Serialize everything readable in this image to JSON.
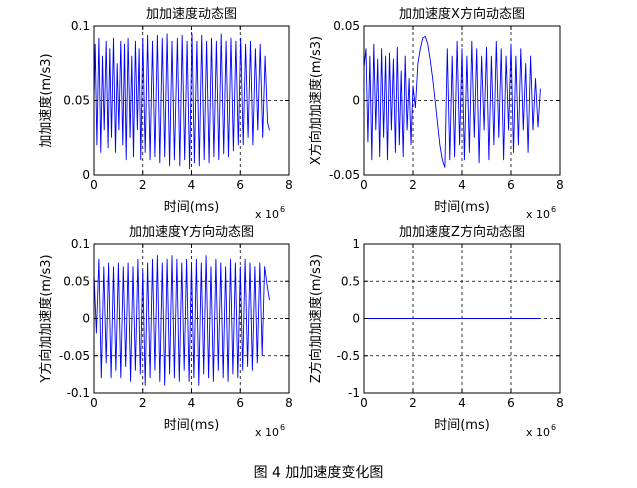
{
  "figure_caption": "图 4  加加速度变化图",
  "colors": {
    "series": "#0000ff",
    "axes": "#000000",
    "grid": "#000000",
    "background": "#ffffff"
  },
  "chart_data": [
    {
      "type": "line",
      "title": "加加速度动态图",
      "xlabel": "时间(ms)",
      "ylabel": "加加速度(m/s3)",
      "x_exponent_label": "x 10",
      "x_exponent": "6",
      "xlim": [
        0,
        8
      ],
      "ylim": [
        0,
        0.1
      ],
      "xticks": [
        "0",
        "2",
        "4",
        "6",
        "8"
      ],
      "yticks": [
        "0",
        "0.05",
        "0.1"
      ],
      "ytick_values": [
        0,
        0.05,
        0.1
      ],
      "grid": true,
      "series": [
        {
          "values_note": "x in units of 1e6 ms",
          "x": [
            0.0,
            0.05,
            0.12,
            0.2,
            0.28,
            0.35,
            0.42,
            0.5,
            0.58,
            0.65,
            0.72,
            0.8,
            0.88,
            0.95,
            1.02,
            1.1,
            1.18,
            1.25,
            1.32,
            1.4,
            1.48,
            1.55,
            1.62,
            1.7,
            1.78,
            1.85,
            1.92,
            2.0,
            2.1,
            2.2,
            2.3,
            2.4,
            2.5,
            2.6,
            2.7,
            2.8,
            2.9,
            3.0,
            3.1,
            3.2,
            3.3,
            3.42,
            3.52,
            3.62,
            3.72,
            3.82,
            3.92,
            4.02,
            4.12,
            4.22,
            4.32,
            4.42,
            4.52,
            4.62,
            4.72,
            4.82,
            4.92,
            5.02,
            5.12,
            5.22,
            5.32,
            5.42,
            5.52,
            5.62,
            5.72,
            5.82,
            5.92,
            6.02,
            6.12,
            6.22,
            6.32,
            6.42,
            6.52,
            6.62,
            6.72,
            6.82,
            6.92,
            7.02,
            7.12,
            7.2
          ],
          "y": [
            0.05,
            0.088,
            0.02,
            0.092,
            0.015,
            0.08,
            0.03,
            0.09,
            0.018,
            0.085,
            0.025,
            0.092,
            0.015,
            0.075,
            0.03,
            0.09,
            0.02,
            0.088,
            0.01,
            0.092,
            0.025,
            0.08,
            0.012,
            0.09,
            0.03,
            0.085,
            0.01,
            0.092,
            0.015,
            0.094,
            0.01,
            0.09,
            0.012,
            0.094,
            0.008,
            0.092,
            0.012,
            0.095,
            0.006,
            0.09,
            0.01,
            0.092,
            0.006,
            0.094,
            0.01,
            0.09,
            0.004,
            0.095,
            0.008,
            0.09,
            0.006,
            0.094,
            0.01,
            0.09,
            0.008,
            0.092,
            0.012,
            0.09,
            0.01,
            0.095,
            0.014,
            0.09,
            0.012,
            0.092,
            0.016,
            0.09,
            0.02,
            0.092,
            0.02,
            0.088,
            0.025,
            0.09,
            0.02,
            0.085,
            0.03,
            0.088,
            0.025,
            0.08,
            0.035,
            0.03
          ]
        }
      ]
    },
    {
      "type": "line",
      "title": "加加速度X方向动态图",
      "xlabel": "时间(ms)",
      "ylabel": "X方向加加速度(m/s3)",
      "x_exponent_label": "x 10",
      "x_exponent": "6",
      "xlim": [
        0,
        8
      ],
      "ylim": [
        -0.05,
        0.05
      ],
      "xticks": [
        "0",
        "2",
        "4",
        "6",
        "8"
      ],
      "yticks": [
        "-0.05",
        "0",
        "0.05"
      ],
      "ytick_values": [
        -0.05,
        0,
        0.05
      ],
      "grid": true,
      "series": [
        {
          "x": [
            0.0,
            0.08,
            0.16,
            0.24,
            0.32,
            0.4,
            0.48,
            0.56,
            0.64,
            0.72,
            0.8,
            0.88,
            0.96,
            1.04,
            1.12,
            1.2,
            1.28,
            1.36,
            1.44,
            1.52,
            1.6,
            1.68,
            1.76,
            1.84,
            1.92,
            2.0,
            2.1,
            2.2,
            2.3,
            2.4,
            2.5,
            2.6,
            2.7,
            2.8,
            2.9,
            3.0,
            3.1,
            3.2,
            3.3,
            3.4,
            3.5,
            3.6,
            3.7,
            3.8,
            3.9,
            4.0,
            4.1,
            4.2,
            4.3,
            4.4,
            4.5,
            4.6,
            4.7,
            4.8,
            4.9,
            5.0,
            5.1,
            5.2,
            5.3,
            5.4,
            5.5,
            5.6,
            5.7,
            5.8,
            5.9,
            6.0,
            6.1,
            6.2,
            6.3,
            6.4,
            6.5,
            6.6,
            6.7,
            6.8,
            6.9,
            7.0,
            7.1,
            7.2
          ],
          "y": [
            0.022,
            0.035,
            -0.028,
            0.03,
            -0.04,
            0.038,
            -0.02,
            0.028,
            -0.038,
            0.035,
            -0.025,
            0.03,
            -0.04,
            0.032,
            -0.02,
            0.028,
            -0.035,
            0.036,
            -0.03,
            0.02,
            -0.038,
            0.03,
            -0.02,
            0.015,
            -0.03,
            0.01,
            -0.005,
            0.025,
            0.035,
            0.042,
            0.043,
            0.038,
            0.028,
            0.015,
            0.0,
            -0.015,
            -0.03,
            -0.04,
            -0.045,
            0.035,
            -0.04,
            0.03,
            -0.038,
            0.04,
            -0.03,
            0.035,
            -0.04,
            0.03,
            -0.035,
            0.04,
            -0.025,
            0.035,
            -0.042,
            0.03,
            -0.02,
            0.036,
            -0.04,
            0.03,
            -0.03,
            0.04,
            -0.025,
            0.035,
            -0.04,
            0.03,
            -0.02,
            0.038,
            -0.035,
            0.03,
            -0.03,
            0.035,
            -0.02,
            0.025,
            -0.035,
            0.03,
            -0.02,
            0.015,
            -0.018,
            0.008
          ]
        }
      ]
    },
    {
      "type": "line",
      "title": "加加速度Y方向动态图",
      "xlabel": "时间(ms)",
      "ylabel": "Y方向加加速度(m/s3)",
      "x_exponent_label": "x 10",
      "x_exponent": "6",
      "xlim": [
        0,
        8
      ],
      "ylim": [
        -0.1,
        0.1
      ],
      "xticks": [
        "0",
        "2",
        "4",
        "6",
        "8"
      ],
      "yticks": [
        "-0.1",
        "-0.05",
        "0",
        "0.05",
        "0.1"
      ],
      "ytick_values": [
        -0.1,
        -0.05,
        0,
        0.05,
        0.1
      ],
      "grid": true,
      "series": [
        {
          "x": [
            0.0,
            0.1,
            0.2,
            0.3,
            0.4,
            0.5,
            0.6,
            0.7,
            0.8,
            0.9,
            1.0,
            1.1,
            1.2,
            1.3,
            1.4,
            1.5,
            1.6,
            1.7,
            1.8,
            1.9,
            2.0,
            2.1,
            2.2,
            2.3,
            2.4,
            2.5,
            2.6,
            2.7,
            2.8,
            2.9,
            3.0,
            3.1,
            3.2,
            3.3,
            3.4,
            3.5,
            3.6,
            3.7,
            3.8,
            3.9,
            4.0,
            4.1,
            4.2,
            4.3,
            4.4,
            4.5,
            4.6,
            4.7,
            4.8,
            4.9,
            5.0,
            5.1,
            5.2,
            5.3,
            5.4,
            5.5,
            5.6,
            5.7,
            5.8,
            5.9,
            6.0,
            6.1,
            6.2,
            6.3,
            6.4,
            6.5,
            6.6,
            6.7,
            6.8,
            6.9,
            7.0,
            7.1,
            7.2
          ],
          "y": [
            0.06,
            -0.02,
            0.08,
            -0.08,
            0.07,
            -0.06,
            0.075,
            -0.08,
            0.07,
            -0.07,
            0.075,
            -0.08,
            0.07,
            -0.065,
            0.075,
            -0.085,
            0.07,
            -0.07,
            0.08,
            -0.075,
            0.065,
            -0.09,
            0.075,
            -0.08,
            0.08,
            -0.07,
            0.085,
            -0.085,
            0.075,
            -0.09,
            0.08,
            -0.075,
            0.085,
            -0.08,
            0.08,
            -0.085,
            0.075,
            -0.07,
            0.08,
            -0.085,
            0.075,
            -0.08,
            0.08,
            -0.09,
            0.075,
            -0.075,
            0.085,
            -0.08,
            0.07,
            -0.085,
            0.08,
            -0.07,
            0.075,
            -0.08,
            0.07,
            -0.085,
            0.08,
            -0.075,
            0.075,
            -0.08,
            0.07,
            -0.07,
            0.08,
            -0.065,
            0.075,
            -0.07,
            0.07,
            -0.06,
            0.075,
            -0.05,
            0.07,
            0.045,
            0.025
          ]
        }
      ]
    },
    {
      "type": "line",
      "title": "加加速度Z方向动态图",
      "xlabel": "时间(ms)",
      "ylabel": "Z方向加加速度(m/s3)",
      "x_exponent_label": "x 10",
      "x_exponent": "6",
      "xlim": [
        0,
        8
      ],
      "ylim": [
        -1,
        1
      ],
      "xticks": [
        "0",
        "2",
        "4",
        "6",
        "8"
      ],
      "yticks": [
        "-1",
        "-0.5",
        "0",
        "0.5",
        "1"
      ],
      "ytick_values": [
        -1,
        -0.5,
        0,
        0.5,
        1
      ],
      "grid": true,
      "series": [
        {
          "x": [
            0.0,
            7.2
          ],
          "y": [
            0,
            0
          ]
        }
      ]
    }
  ]
}
